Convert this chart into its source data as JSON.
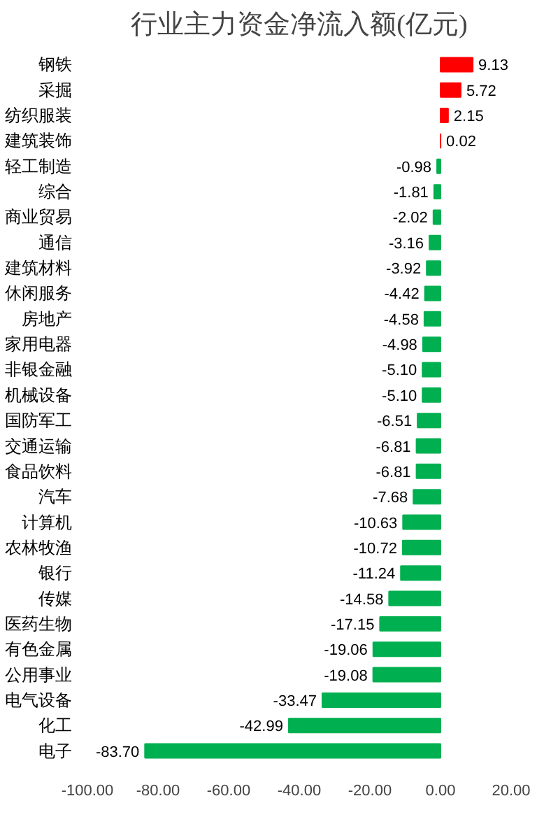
{
  "chart_data": {
    "type": "bar",
    "orientation": "horizontal",
    "title": "行业主力资金净流入额(亿元)",
    "categories": [
      "钢铁",
      "采掘",
      "纺织服装",
      "建筑装饰",
      "轻工制造",
      "综合",
      "商业贸易",
      "通信",
      "建筑材料",
      "休闲服务",
      "房地产",
      "家用电器",
      "非银金融",
      "机械设备",
      "国防军工",
      "交通运输",
      "食品饮料",
      "汽车",
      "计算机",
      "农林牧渔",
      "银行",
      "传媒",
      "医药生物",
      "有色金属",
      "公用事业",
      "电气设备",
      "化工",
      "电子"
    ],
    "values": [
      9.13,
      5.72,
      2.15,
      0.02,
      -0.98,
      -1.81,
      -2.02,
      -3.16,
      -3.92,
      -4.42,
      -4.58,
      -4.98,
      -5.1,
      -5.1,
      -6.51,
      -6.81,
      -6.81,
      -7.68,
      -10.63,
      -10.72,
      -11.24,
      -14.58,
      -17.15,
      -19.06,
      -19.08,
      -33.47,
      -42.99,
      -83.7
    ],
    "value_labels": [
      "9.13",
      "5.72",
      "2.15",
      "0.02",
      "-0.98",
      "-1.81",
      "-2.02",
      "-3.16",
      "-3.92",
      "-4.42",
      "-4.58",
      "-4.98",
      "-5.10",
      "-5.10",
      "-6.51",
      "-6.81",
      "-6.81",
      "-7.68",
      "-10.63",
      "-10.72",
      "-11.24",
      "-14.58",
      "-17.15",
      "-19.06",
      "-19.08",
      "-33.47",
      "-42.99",
      "-83.70"
    ],
    "colors": [
      "#ff0000",
      "#ff0000",
      "#ff0000",
      "#ff0000",
      "#00b050",
      "#00b050",
      "#00b050",
      "#00b050",
      "#00b050",
      "#00b050",
      "#00b050",
      "#00b050",
      "#00b050",
      "#00b050",
      "#00b050",
      "#00b050",
      "#00b050",
      "#00b050",
      "#00b050",
      "#00b050",
      "#00b050",
      "#00b050",
      "#00b050",
      "#00b050",
      "#00b050",
      "#00b050",
      "#00b050",
      "#00b050"
    ],
    "xlim": [
      -100,
      20
    ],
    "xticks": [
      {
        "value": -100,
        "label": "-100.00"
      },
      {
        "value": -80,
        "label": "-80.00"
      },
      {
        "value": -60,
        "label": "-60.00"
      },
      {
        "value": -40,
        "label": "-40.00"
      },
      {
        "value": -20,
        "label": "-20.00"
      },
      {
        "value": 0,
        "label": "0.00"
      },
      {
        "value": 20,
        "label": "20.00"
      }
    ],
    "grid": false
  }
}
